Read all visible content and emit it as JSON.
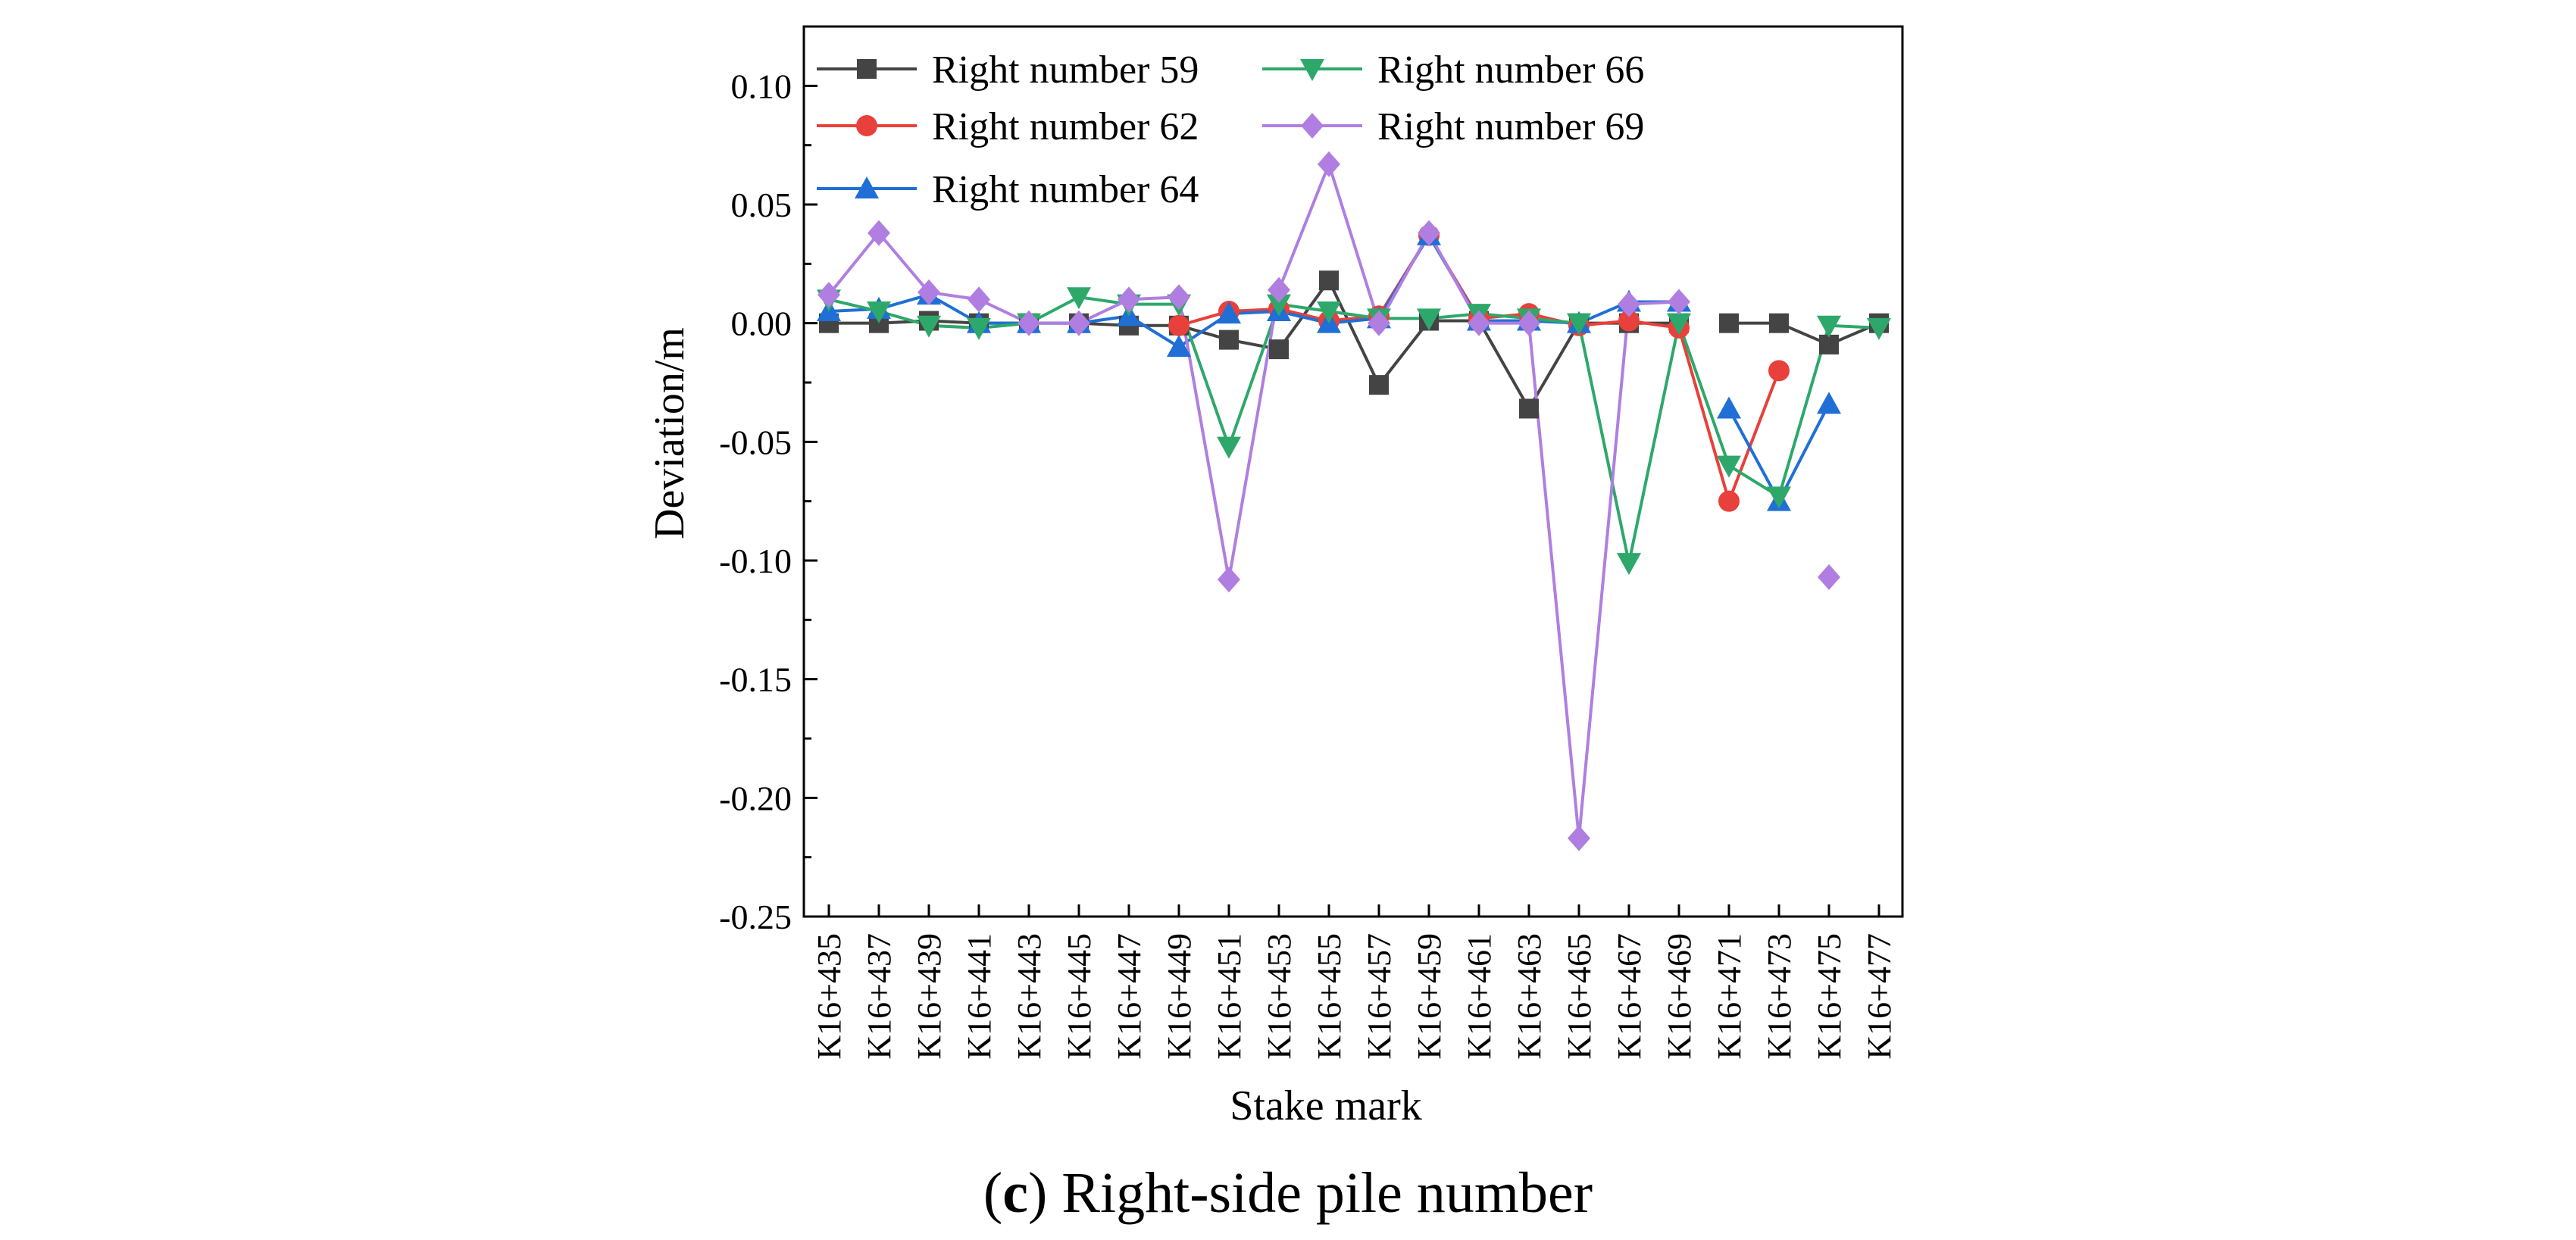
{
  "chart_data": {
    "type": "line",
    "title": "",
    "xlabel": "Stake mark",
    "ylabel": "Deviation/m",
    "ylim": [
      -0.25,
      0.125
    ],
    "yticks": [
      "0.10",
      "0.05",
      "0.00",
      "-0.05",
      "-0.10",
      "-0.15",
      "-0.20",
      "-0.25"
    ],
    "yticks_values": [
      0.1,
      0.05,
      0.0,
      -0.05,
      -0.1,
      -0.15,
      -0.2,
      -0.25
    ],
    "categories": [
      "K16+435",
      "K16+437",
      "K16+439",
      "K16+441",
      "K16+443",
      "K16+445",
      "K16+447",
      "K16+449",
      "K16+451",
      "K16+453",
      "K16+455",
      "K16+457",
      "K16+459",
      "K16+461",
      "K16+463",
      "K16+465",
      "K16+467",
      "K16+469",
      "K16+471",
      "K16+473",
      "K16+475",
      "K16+477"
    ],
    "legend_position": "top-left",
    "series": [
      {
        "name": "Right number 59",
        "color": "#444444",
        "marker": "square",
        "values": [
          0.0,
          0.0,
          0.001,
          0.0,
          0.0,
          0.0,
          -0.001,
          -0.001,
          -0.007,
          -0.011,
          0.018,
          -0.026,
          0.001,
          0.001,
          -0.036,
          0.0,
          0.0,
          0.0,
          0.0,
          0.0,
          -0.009,
          0.0
        ],
        "breaks": [
          17
        ]
      },
      {
        "name": "Right number 62",
        "color": "#e8403a",
        "marker": "circle",
        "values": [
          null,
          null,
          null,
          null,
          null,
          null,
          null,
          -0.001,
          0.005,
          0.006,
          0.001,
          0.003,
          0.037,
          0.002,
          0.004,
          -0.001,
          0.001,
          -0.002,
          -0.075,
          -0.02,
          null,
          null
        ]
      },
      {
        "name": "Right number 64",
        "color": "#1f6fd6",
        "marker": "triangle-up",
        "values": [
          0.005,
          0.006,
          0.012,
          0.0,
          0.0,
          0.0,
          0.003,
          -0.01,
          0.004,
          0.005,
          0.0,
          0.002,
          0.037,
          0.001,
          0.001,
          0.0,
          0.009,
          0.009,
          -0.036,
          -0.075,
          -0.034,
          null
        ],
        "breaks": [
          17
        ]
      },
      {
        "name": "Right number 66",
        "color": "#2ea86a",
        "marker": "triangle-down",
        "values": [
          0.01,
          0.005,
          -0.001,
          -0.002,
          0.0,
          0.011,
          0.008,
          0.008,
          -0.052,
          0.008,
          0.005,
          0.002,
          0.002,
          0.004,
          0.002,
          0.0,
          -0.101,
          0.0,
          -0.06,
          -0.073,
          -0.001,
          -0.002
        ]
      },
      {
        "name": "Right number 69",
        "color": "#b07ee0",
        "marker": "diamond",
        "values": [
          0.012,
          0.038,
          0.013,
          0.01,
          0.0,
          0.0,
          0.01,
          0.011,
          -0.108,
          0.014,
          0.067,
          0.0,
          0.038,
          0.0,
          0.0,
          -0.217,
          0.008,
          0.009,
          null,
          null,
          -0.107,
          null
        ]
      }
    ]
  },
  "caption": {
    "letter": "c",
    "text": "Right-side pile number"
  }
}
